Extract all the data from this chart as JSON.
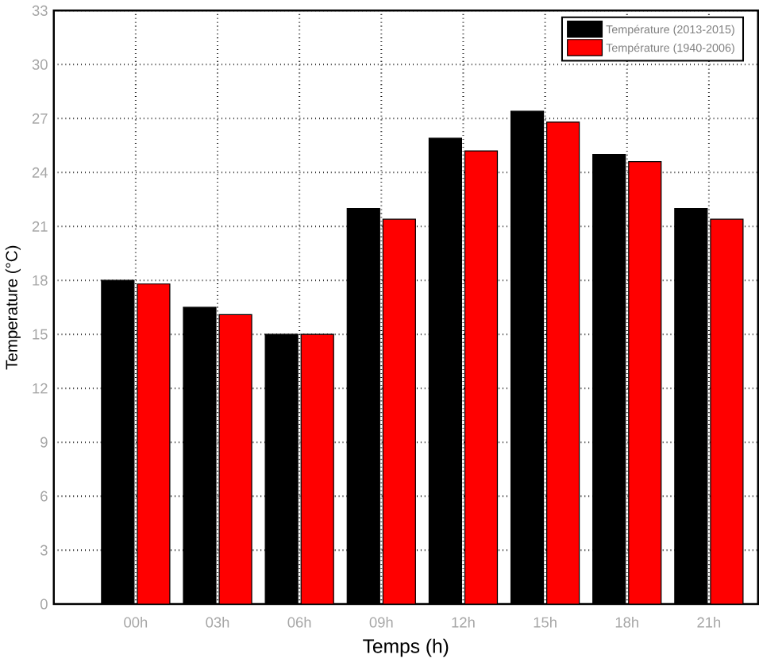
{
  "chart_data": {
    "type": "bar",
    "xlabel": "Temps (h)",
    "ylabel": "Temperature (°C)",
    "categories": [
      "00h",
      "03h",
      "06h",
      "09h",
      "12h",
      "15h",
      "18h",
      "21h"
    ],
    "series": [
      {
        "name": "Température (2013-2015)",
        "color": "#000000",
        "values": [
          18.0,
          16.5,
          15.0,
          22.0,
          25.9,
          27.4,
          25.0,
          22.0
        ]
      },
      {
        "name": "Température (1940-2006)",
        "color": "#ff0000",
        "values": [
          17.8,
          16.1,
          15.0,
          21.4,
          25.2,
          26.8,
          24.6,
          21.4
        ]
      }
    ],
    "ylim": [
      0,
      33
    ],
    "yticks": [
      0,
      3,
      6,
      9,
      12,
      15,
      18,
      21,
      24,
      27,
      30,
      33
    ],
    "grid": true,
    "legend": "top right"
  }
}
